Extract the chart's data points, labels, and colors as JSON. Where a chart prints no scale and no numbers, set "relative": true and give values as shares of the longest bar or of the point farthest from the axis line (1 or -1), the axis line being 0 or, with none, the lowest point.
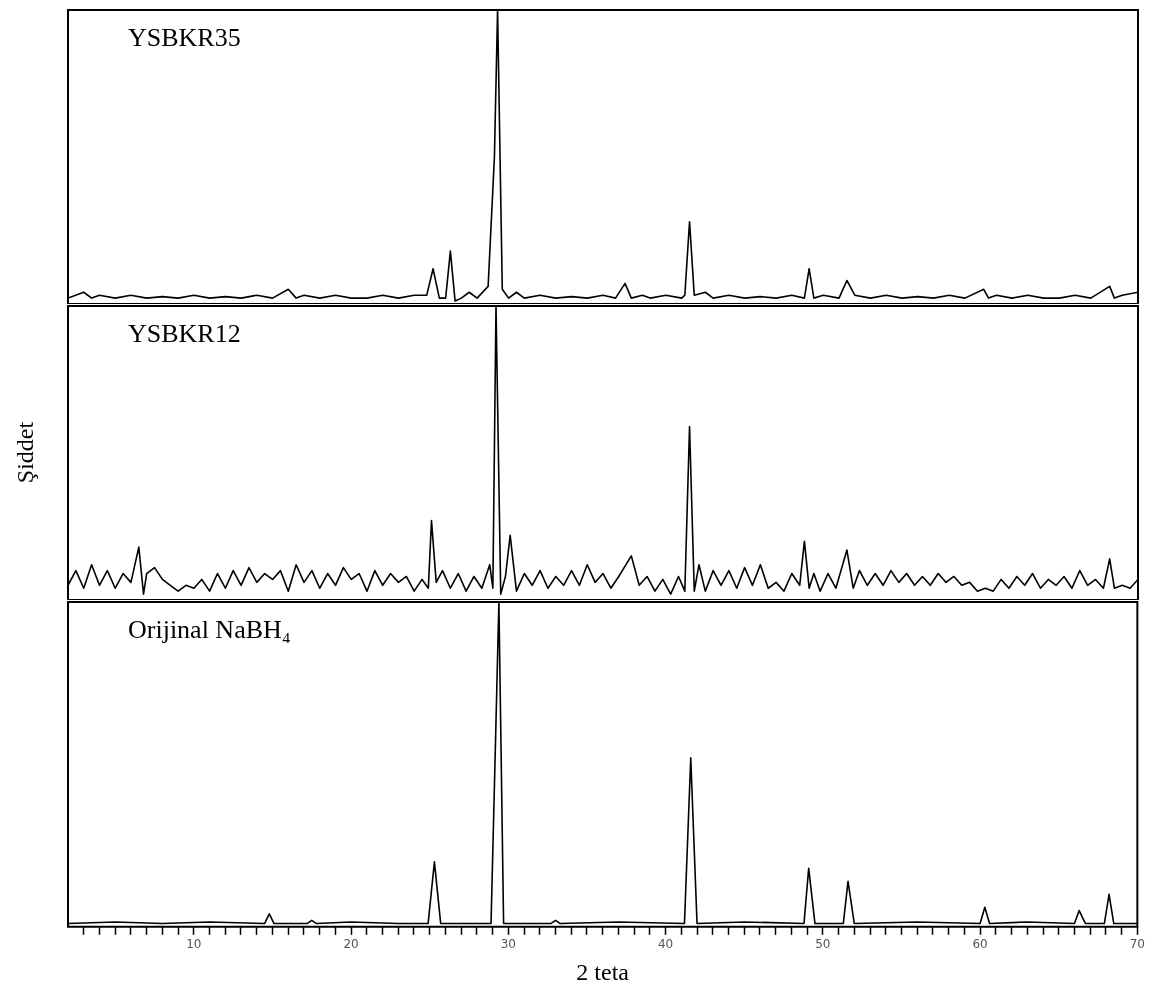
{
  "chart_data": [
    {
      "type": "line",
      "relative": true,
      "xlim": [
        2,
        70
      ],
      "tick_labels": false,
      "annotations": [
        "YSBKR35"
      ],
      "series": [
        {
          "color": "#000000",
          "x": [
            2,
            3,
            3.5,
            4,
            5,
            6,
            7,
            8,
            9,
            10,
            11,
            12,
            13,
            14,
            15,
            16,
            16.5,
            17,
            18,
            19,
            20,
            21,
            22,
            23,
            24,
            24.8,
            25.2,
            25.6,
            26,
            26.3,
            26.6,
            27,
            27.5,
            28,
            28.7,
            29.1,
            29.3,
            29.6,
            30,
            30.5,
            31,
            32,
            33,
            34,
            35,
            36,
            36.8,
            37.4,
            37.8,
            38.5,
            39,
            40,
            41,
            41.2,
            41.5,
            41.8,
            42.5,
            43,
            44,
            45,
            46,
            47,
            48,
            48.8,
            49.1,
            49.4,
            50,
            51,
            51.5,
            52,
            53,
            54,
            55,
            56,
            57,
            58,
            59,
            60.2,
            60.5,
            61,
            62,
            63,
            64,
            65,
            66,
            67,
            68.2,
            68.5,
            69,
            70
          ],
          "values": [
            0.02,
            0.04,
            0.02,
            0.03,
            0.02,
            0.03,
            0.02,
            0.025,
            0.02,
            0.03,
            0.02,
            0.025,
            0.02,
            0.03,
            0.02,
            0.05,
            0.02,
            0.03,
            0.02,
            0.03,
            0.02,
            0.02,
            0.03,
            0.02,
            0.03,
            0.03,
            0.12,
            0.02,
            0.02,
            0.18,
            0.01,
            0.02,
            0.04,
            0.02,
            0.06,
            0.5,
            1,
            0.05,
            0.02,
            0.04,
            0.02,
            0.03,
            0.02,
            0.025,
            0.02,
            0.03,
            0.02,
            0.07,
            0.02,
            0.03,
            0.02,
            0.03,
            0.02,
            0.03,
            0.28,
            0.03,
            0.04,
            0.02,
            0.03,
            0.02,
            0.025,
            0.02,
            0.03,
            0.02,
            0.12,
            0.02,
            0.03,
            0.02,
            0.08,
            0.03,
            0.02,
            0.03,
            0.02,
            0.025,
            0.02,
            0.03,
            0.02,
            0.05,
            0.02,
            0.03,
            0.02,
            0.03,
            0.02,
            0.02,
            0.03,
            0.02,
            0.06,
            0.02,
            0.03,
            0.04
          ]
        }
      ]
    },
    {
      "type": "line",
      "relative": true,
      "xlim": [
        2,
        70
      ],
      "tick_labels": false,
      "annotations": [
        "YSBKR12"
      ],
      "ylabel": "Şiddet",
      "series": [
        {
          "color": "#000000",
          "x": [
            2,
            2.5,
            3,
            3.5,
            4,
            4.5,
            5,
            5.5,
            6,
            6.5,
            6.8,
            7,
            7.5,
            8,
            8.5,
            9,
            9.5,
            10,
            10.5,
            11,
            11.5,
            12,
            12.5,
            13,
            13.5,
            14,
            14.5,
            15,
            15.5,
            16,
            16.5,
            17,
            17.5,
            18,
            18.5,
            19,
            19.5,
            20,
            20.5,
            21,
            21.5,
            22,
            22.5,
            23,
            23.5,
            24,
            24.5,
            24.9,
            25.1,
            25.4,
            25.8,
            26.3,
            26.8,
            27.3,
            27.8,
            28.3,
            28.8,
            29,
            29.2,
            29.5,
            29.8,
            30.1,
            30.5,
            31,
            31.5,
            32,
            32.5,
            33,
            33.5,
            34,
            34.5,
            35,
            35.5,
            36,
            36.5,
            37,
            37.8,
            38.3,
            38.8,
            39.3,
            39.8,
            40.3,
            40.8,
            41.2,
            41.5,
            41.8,
            42.1,
            42.5,
            43,
            43.5,
            44,
            44.5,
            45,
            45.5,
            46,
            46.5,
            47,
            47.5,
            48,
            48.5,
            48.8,
            49.1,
            49.4,
            49.8,
            50.3,
            50.8,
            51.5,
            51.9,
            52.3,
            52.8,
            53.3,
            53.8,
            54.3,
            54.8,
            55.3,
            55.8,
            56.3,
            56.8,
            57.3,
            57.8,
            58.3,
            58.8,
            59.3,
            59.8,
            60.3,
            60.8,
            61.3,
            61.8,
            62.3,
            62.8,
            63.3,
            63.8,
            64.3,
            64.8,
            65.3,
            65.8,
            66.3,
            66.8,
            67.3,
            67.8,
            68.2,
            68.5,
            69,
            69.5,
            70
          ],
          "values": [
            0.05,
            0.1,
            0.04,
            0.12,
            0.05,
            0.1,
            0.04,
            0.09,
            0.06,
            0.18,
            0.02,
            0.09,
            0.11,
            0.07,
            0.05,
            0.03,
            0.05,
            0.04,
            0.07,
            0.03,
            0.09,
            0.04,
            0.1,
            0.05,
            0.11,
            0.06,
            0.09,
            0.07,
            0.1,
            0.03,
            0.12,
            0.06,
            0.1,
            0.04,
            0.09,
            0.05,
            0.11,
            0.07,
            0.09,
            0.03,
            0.1,
            0.05,
            0.09,
            0.06,
            0.08,
            0.03,
            0.07,
            0.04,
            0.27,
            0.06,
            0.1,
            0.04,
            0.09,
            0.03,
            0.08,
            0.04,
            0.12,
            0.04,
            1,
            0.02,
            0.08,
            0.22,
            0.03,
            0.09,
            0.05,
            0.1,
            0.04,
            0.08,
            0.05,
            0.1,
            0.05,
            0.12,
            0.06,
            0.09,
            0.04,
            0.08,
            0.15,
            0.05,
            0.08,
            0.03,
            0.07,
            0.02,
            0.08,
            0.03,
            0.59,
            0.03,
            0.12,
            0.03,
            0.1,
            0.05,
            0.1,
            0.04,
            0.11,
            0.05,
            0.12,
            0.04,
            0.06,
            0.03,
            0.09,
            0.05,
            0.2,
            0.04,
            0.09,
            0.03,
            0.09,
            0.04,
            0.17,
            0.04,
            0.1,
            0.05,
            0.09,
            0.05,
            0.1,
            0.06,
            0.09,
            0.05,
            0.08,
            0.05,
            0.09,
            0.06,
            0.08,
            0.05,
            0.06,
            0.03,
            0.04,
            0.03,
            0.07,
            0.04,
            0.08,
            0.05,
            0.09,
            0.04,
            0.07,
            0.05,
            0.08,
            0.04,
            0.1,
            0.05,
            0.07,
            0.04,
            0.14,
            0.04,
            0.05,
            0.04,
            0.07
          ]
        }
      ]
    },
    {
      "type": "line",
      "relative": true,
      "xlim": [
        2,
        70
      ],
      "tick_labels": "x",
      "xlabel": "2 teta",
      "annotations": [
        "Orijinal NaBH₄"
      ],
      "xticks": [
        {
          "value": 3,
          "label": null
        },
        {
          "value": 4,
          "label": null
        },
        {
          "value": 5,
          "label": null
        },
        {
          "value": 6,
          "label": null
        },
        {
          "value": 7,
          "label": null
        },
        {
          "value": 8,
          "label": null
        },
        {
          "value": 9,
          "label": null
        },
        10,
        {
          "value": 11,
          "label": null
        },
        {
          "value": 12,
          "label": null
        },
        {
          "value": 13,
          "label": null
        },
        {
          "value": 14,
          "label": null
        },
        {
          "value": 15,
          "label": null
        },
        {
          "value": 16,
          "label": null
        },
        {
          "value": 17,
          "label": null
        },
        {
          "value": 18,
          "label": null
        },
        {
          "value": 19,
          "label": null
        },
        20,
        {
          "value": 21,
          "label": null
        },
        {
          "value": 22,
          "label": null
        },
        {
          "value": 23,
          "label": null
        },
        {
          "value": 24,
          "label": null
        },
        {
          "value": 25,
          "label": null
        },
        {
          "value": 26,
          "label": null
        },
        {
          "value": 27,
          "label": null
        },
        {
          "value": 28,
          "label": null
        },
        {
          "value": 29,
          "label": null
        },
        30,
        {
          "value": 31,
          "label": null
        },
        {
          "value": 32,
          "label": null
        },
        {
          "value": 33,
          "label": null
        },
        {
          "value": 34,
          "label": null
        },
        {
          "value": 35,
          "label": null
        },
        {
          "value": 36,
          "label": null
        },
        {
          "value": 37,
          "label": null
        },
        {
          "value": 38,
          "label": null
        },
        {
          "value": 39,
          "label": null
        },
        40,
        {
          "value": 41,
          "label": null
        },
        {
          "value": 42,
          "label": null
        },
        {
          "value": 43,
          "label": null
        },
        {
          "value": 44,
          "label": null
        },
        {
          "value": 45,
          "label": null
        },
        {
          "value": 46,
          "label": null
        },
        {
          "value": 47,
          "label": null
        },
        {
          "value": 48,
          "label": null
        },
        {
          "value": 49,
          "label": null
        },
        50,
        {
          "value": 51,
          "label": null
        },
        {
          "value": 52,
          "label": null
        },
        {
          "value": 53,
          "label": null
        },
        {
          "value": 54,
          "label": null
        },
        {
          "value": 55,
          "label": null
        },
        {
          "value": 56,
          "label": null
        },
        {
          "value": 57,
          "label": null
        },
        {
          "value": 58,
          "label": null
        },
        {
          "value": 59,
          "label": null
        },
        60,
        {
          "value": 61,
          "label": null
        },
        {
          "value": 62,
          "label": null
        },
        {
          "value": 63,
          "label": null
        },
        {
          "value": 64,
          "label": null
        },
        {
          "value": 65,
          "label": null
        },
        {
          "value": 66,
          "label": null
        },
        {
          "value": 67,
          "label": null
        },
        {
          "value": 68,
          "label": null
        },
        {
          "value": 69,
          "label": null
        },
        70
      ],
      "series": [
        {
          "color": "#000000",
          "x": [
            2,
            5,
            8,
            11,
            14.5,
            14.8,
            15.1,
            17.2,
            17.5,
            17.8,
            20,
            23,
            24.9,
            25.3,
            25.7,
            28.9,
            29.2,
            29.4,
            29.7,
            32.7,
            33,
            33.3,
            37,
            41.2,
            41.6,
            42,
            45,
            48.8,
            49.1,
            49.5,
            51.3,
            51.6,
            52,
            56,
            60,
            60.3,
            60.6,
            63,
            66,
            66.3,
            66.7,
            67.9,
            68.2,
            68.5,
            70
          ],
          "values": [
            0.01,
            0.015,
            0.01,
            0.015,
            0.01,
            0.04,
            0.01,
            0.01,
            0.02,
            0.01,
            0.015,
            0.01,
            0.01,
            0.2,
            0.01,
            0.01,
            0.6,
            1,
            0.01,
            0.01,
            0.02,
            0.01,
            0.015,
            0.01,
            0.52,
            0.01,
            0.015,
            0.01,
            0.18,
            0.01,
            0.01,
            0.14,
            0.01,
            0.015,
            0.01,
            0.06,
            0.01,
            0.015,
            0.01,
            0.05,
            0.01,
            0.01,
            0.1,
            0.01,
            0.01
          ]
        }
      ]
    }
  ]
}
